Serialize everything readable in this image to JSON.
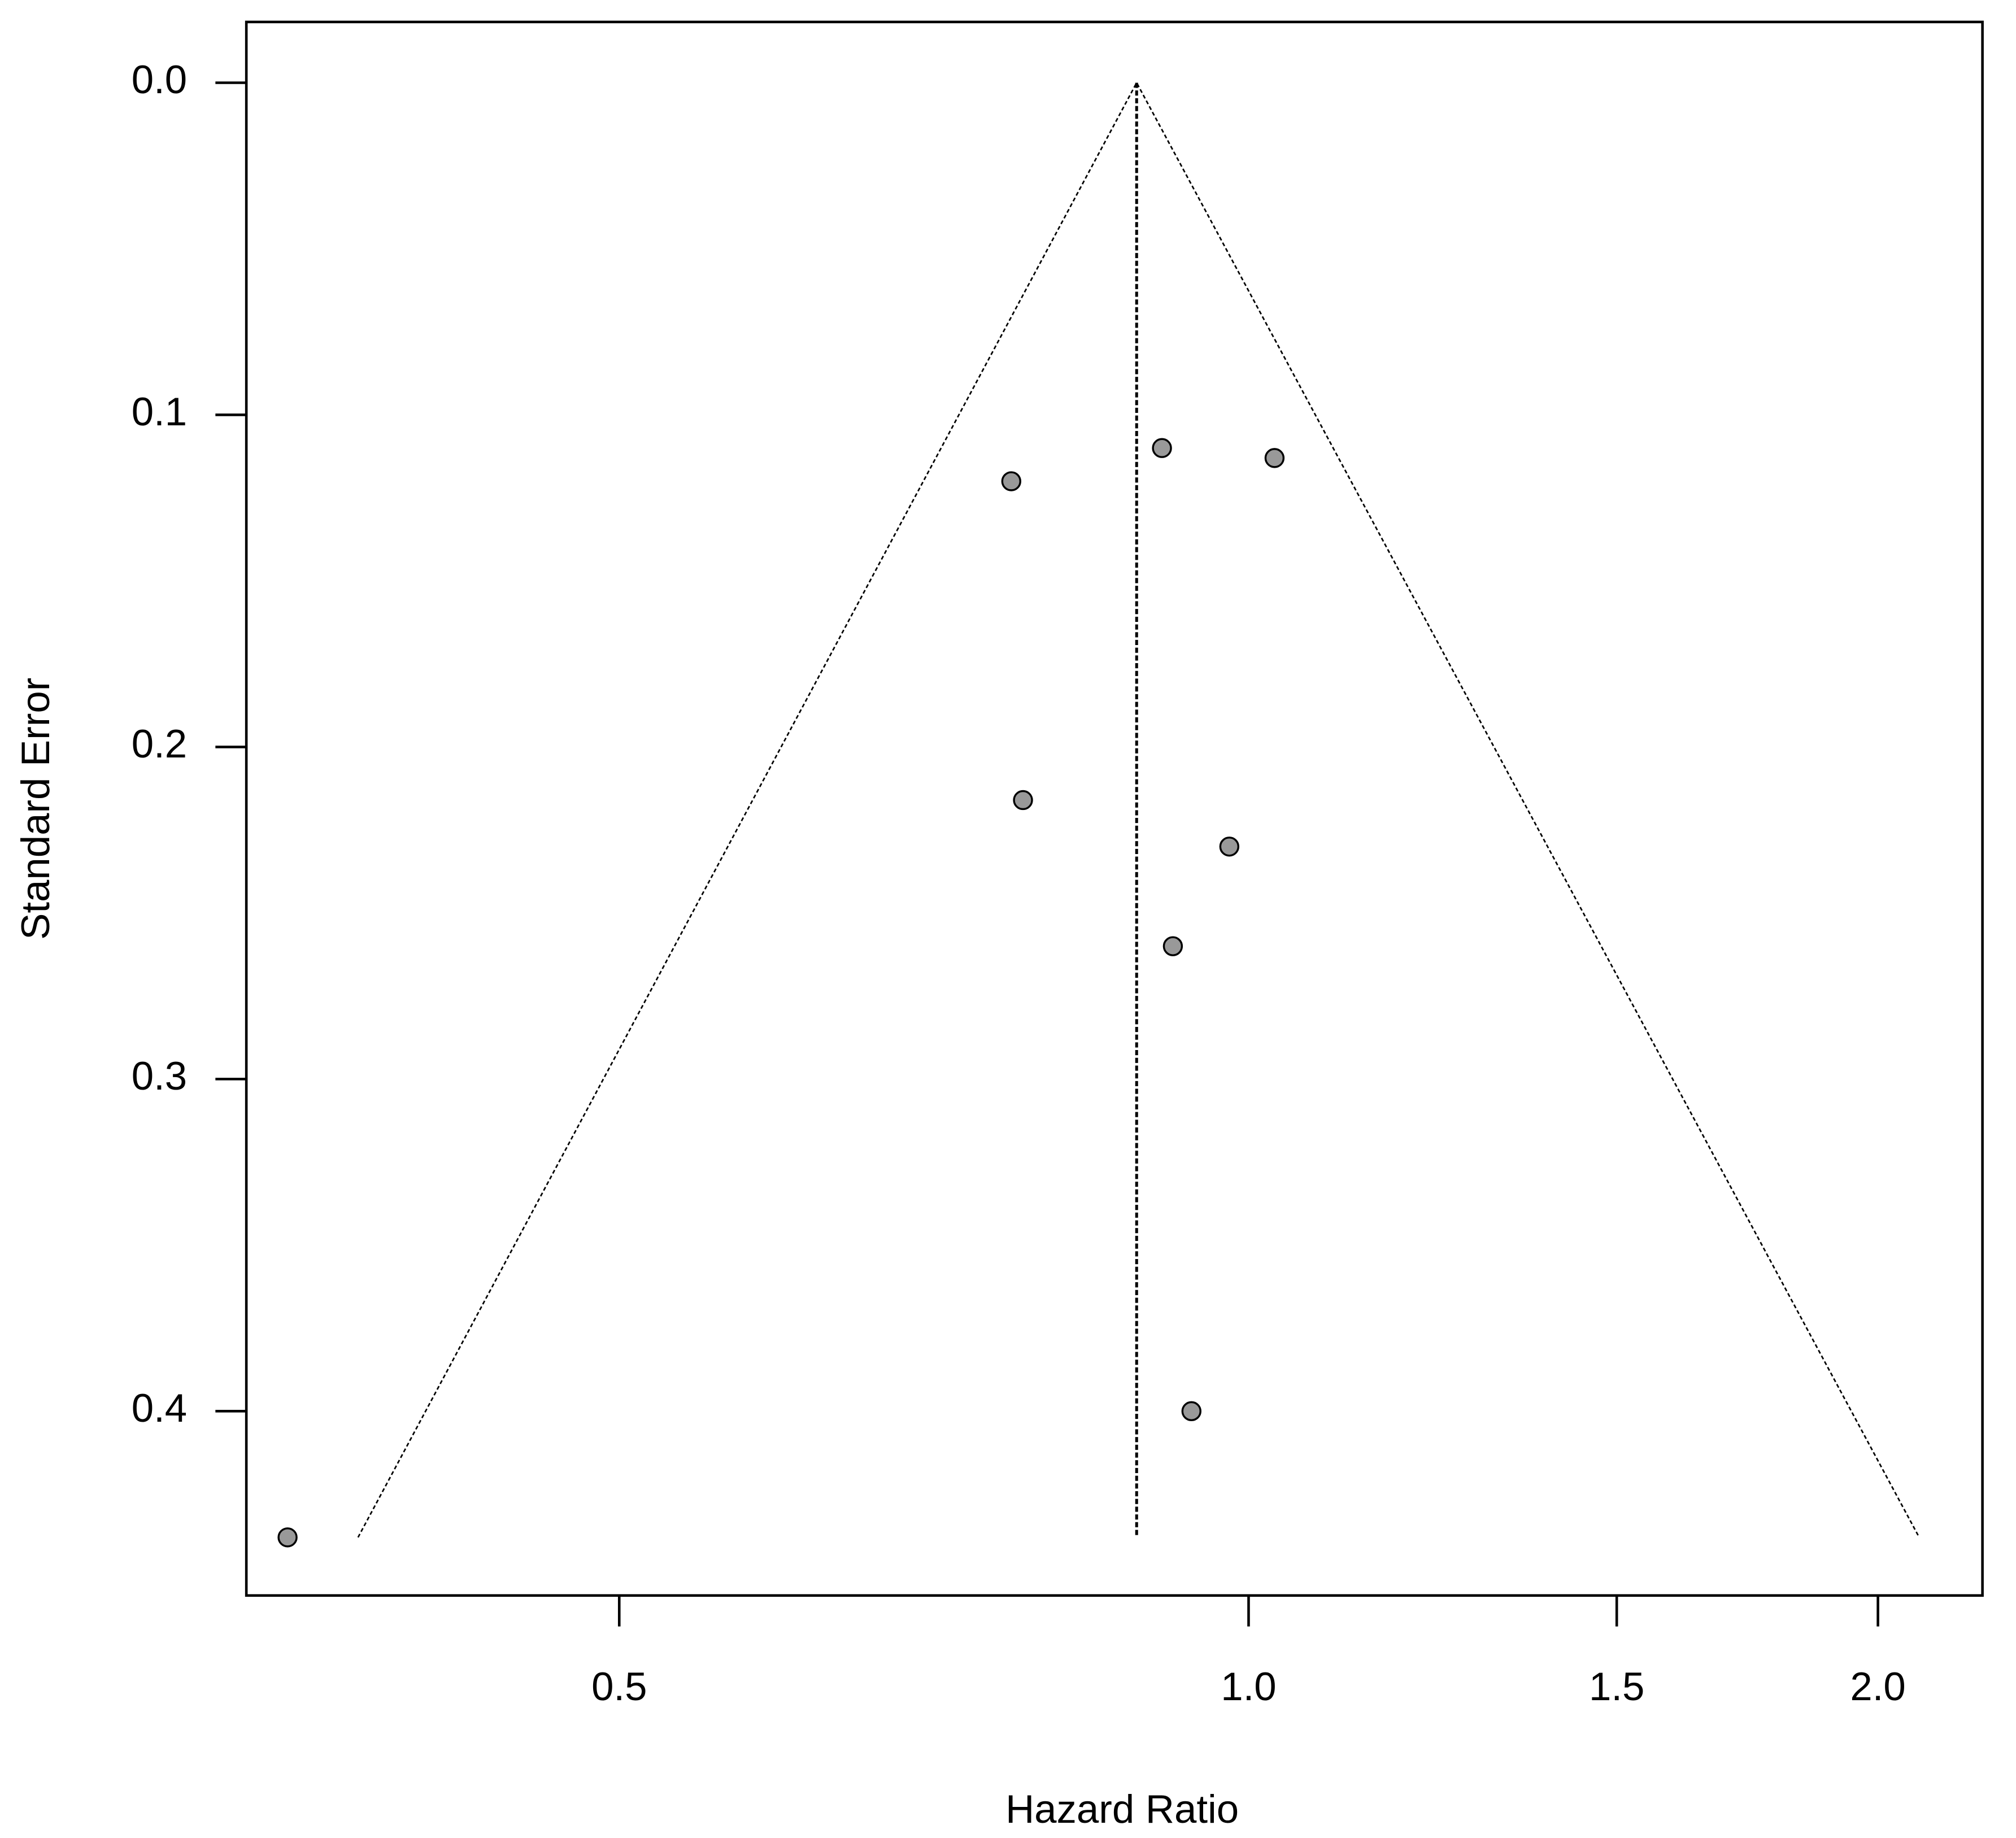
{
  "chart_data": {
    "type": "scatter",
    "xlabel": "Hazard Ratio",
    "ylabel": "Standard Error",
    "x": [
      0.77,
      0.78,
      0.909,
      1.029,
      0.979,
      0.92,
      0.939,
      0.347
    ],
    "values": [
      0.12,
      0.216,
      0.11,
      0.113,
      0.23,
      0.26,
      0.4,
      0.438
    ],
    "color": "#999999",
    "xlog": true,
    "xlim": [
      0.3316,
      2.244
    ],
    "ylim": [
      0.4555,
      -0.0183
    ],
    "xticks": [
      0.5,
      {
        "value": 1,
        "label": "1.0"
      },
      1.5,
      {
        "value": 2,
        "label": "2.0"
      }
    ],
    "yticks": [
      {
        "value": 0,
        "label": "0.0"
      },
      0.1,
      0.2,
      0.3,
      0.4
    ],
    "lines": [
      {
        "x": [
          0.375,
          0.884,
          2.093
        ],
        "values": [
          0.438,
          0,
          0.438
        ],
        "dash": "3,2",
        "width": 1.2
      },
      {
        "x": [
          0.884,
          0.884
        ],
        "values": [
          0,
          0.438
        ],
        "dash": "4,2",
        "width": 2.2
      }
    ]
  }
}
